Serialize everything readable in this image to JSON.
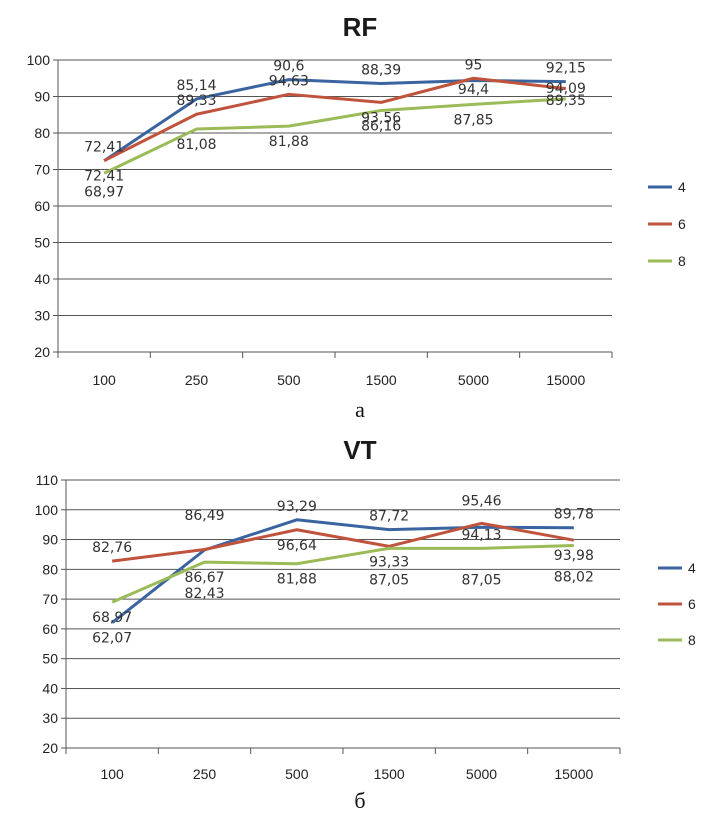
{
  "chart_data": [
    {
      "type": "line",
      "title": "RF",
      "caption": "а",
      "categories": [
        "100",
        "250",
        "500",
        "1500",
        "5000",
        "15000"
      ],
      "ylim": [
        20,
        100
      ],
      "yticks": [
        "20",
        "30",
        "40",
        "50",
        "60",
        "70",
        "80",
        "90",
        "100"
      ],
      "grid": true,
      "legend_position": "right",
      "series": [
        {
          "name": "4",
          "color": "#3a64a0",
          "values": [
            72.41,
            89.33,
            94.63,
            93.56,
            94.4,
            94.09
          ]
        },
        {
          "name": "6",
          "color": "#c0533c",
          "values": [
            72.41,
            85.14,
            90.6,
            88.39,
            95,
            92.15
          ]
        },
        {
          "name": "8",
          "color": "#9bbb59",
          "values": [
            68.97,
            81.08,
            81.88,
            86.16,
            87.85,
            89.35
          ]
        }
      ],
      "data_labels": [
        {
          "text": "72,41",
          "x": 0,
          "y": 72.41,
          "pos": "above"
        },
        {
          "text": "72,41",
          "x": 0,
          "y": 72.41,
          "pos": "below1"
        },
        {
          "text": "68,97",
          "x": 0,
          "y": 72.41,
          "pos": "below2"
        },
        {
          "text": "85,14",
          "x": 1,
          "y": 89.33,
          "pos": "above"
        },
        {
          "text": "89,33",
          "x": 1,
          "y": 85.14,
          "pos": "above"
        },
        {
          "text": "81,08",
          "x": 1,
          "y": 81.08,
          "pos": "below"
        },
        {
          "text": "90,6",
          "x": 2,
          "y": 94.63,
          "pos": "above"
        },
        {
          "text": "94,63",
          "x": 2,
          "y": 90.6,
          "pos": "above"
        },
        {
          "text": "81,88",
          "x": 2,
          "y": 81.88,
          "pos": "below"
        },
        {
          "text": "88,39",
          "x": 3,
          "y": 93.56,
          "pos": "above"
        },
        {
          "text": "93,56",
          "x": 3,
          "y": 88.39,
          "pos": "below"
        },
        {
          "text": "86,16",
          "x": 3,
          "y": 86.16,
          "pos": "below"
        },
        {
          "text": "95",
          "x": 4,
          "y": 95,
          "pos": "above"
        },
        {
          "text": "94,4",
          "x": 4,
          "y": 88.2,
          "pos": "above"
        },
        {
          "text": "87,85",
          "x": 4,
          "y": 87.85,
          "pos": "below"
        },
        {
          "text": "92,15",
          "x": 5,
          "y": 94.09,
          "pos": "above"
        },
        {
          "text": "94,09",
          "x": 5,
          "y": 88.5,
          "pos": "above"
        },
        {
          "text": "89,35",
          "x": 5,
          "y": 85.2,
          "pos": "above"
        }
      ]
    },
    {
      "type": "line",
      "title": "VT",
      "caption": "б",
      "categories": [
        "100",
        "250",
        "500",
        "1500",
        "5000",
        "15000"
      ],
      "ylim": [
        20,
        110
      ],
      "yticks": [
        "20",
        "30",
        "40",
        "50",
        "60",
        "70",
        "80",
        "90",
        "100",
        "110"
      ],
      "grid": true,
      "legend_position": "right",
      "series": [
        {
          "name": "4",
          "color": "#3a64a0",
          "values": [
            62.07,
            86.49,
            96.64,
            93.33,
            94.13,
            93.98
          ]
        },
        {
          "name": "6",
          "color": "#c0533c",
          "values": [
            82.76,
            86.67,
            93.29,
            87.72,
            95.46,
            89.78
          ]
        },
        {
          "name": "8",
          "color": "#9bbb59",
          "values": [
            68.97,
            82.43,
            81.88,
            87.05,
            87.05,
            88.02
          ]
        }
      ],
      "data_labels": [
        {
          "text": "82,76",
          "x": 0,
          "y": 82.76,
          "pos": "above"
        },
        {
          "text": "68,97",
          "x": 0,
          "y": 68.97,
          "pos": "below"
        },
        {
          "text": "62,07",
          "x": 0,
          "y": 62.07,
          "pos": "below"
        },
        {
          "text": "86,49",
          "x": 1,
          "y": 93.5,
          "pos": "above"
        },
        {
          "text": "86,67",
          "x": 1,
          "y": 82.43,
          "pos": "below1"
        },
        {
          "text": "82,43",
          "x": 1,
          "y": 82.43,
          "pos": "below2"
        },
        {
          "text": "93,29",
          "x": 2,
          "y": 96.64,
          "pos": "above"
        },
        {
          "text": "96,64",
          "x": 2,
          "y": 93.29,
          "pos": "below"
        },
        {
          "text": "81,88",
          "x": 2,
          "y": 81.88,
          "pos": "below"
        },
        {
          "text": "87,72",
          "x": 3,
          "y": 93.33,
          "pos": "above"
        },
        {
          "text": "93,33",
          "x": 3,
          "y": 87.72,
          "pos": "below"
        },
        {
          "text": "87,05",
          "x": 3,
          "y": 87.05,
          "pos": "below2"
        },
        {
          "text": "95,46",
          "x": 4,
          "y": 95.46,
          "pos": "above2"
        },
        {
          "text": "94,13",
          "x": 4,
          "y": 87.05,
          "pos": "above"
        },
        {
          "text": "87,05",
          "x": 4,
          "y": 87.05,
          "pos": "below2"
        },
        {
          "text": "89,78",
          "x": 5,
          "y": 93.98,
          "pos": "above"
        },
        {
          "text": "93,98",
          "x": 5,
          "y": 89.78,
          "pos": "below"
        },
        {
          "text": "88,02",
          "x": 5,
          "y": 88.02,
          "pos": "below2"
        }
      ]
    }
  ]
}
